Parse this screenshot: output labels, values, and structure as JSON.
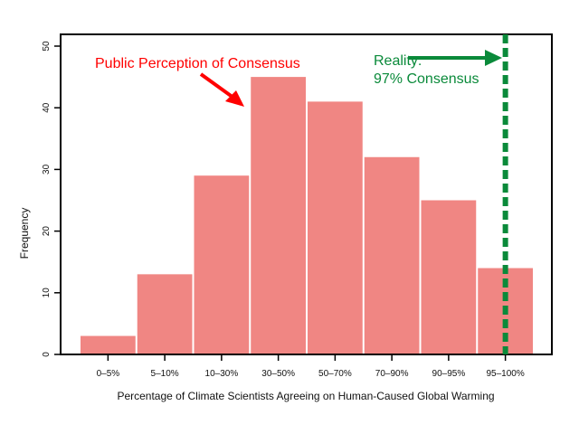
{
  "chart_data": {
    "type": "bar",
    "title": "",
    "xlabel": "Percentage of Climate Scientists Agreeing on Human-Caused Global Warming",
    "ylabel": "Frequency",
    "categories": [
      "0–5%",
      "5–10%",
      "10–30%",
      "30–50%",
      "50–70%",
      "70–90%",
      "90–95%",
      "95–100%"
    ],
    "values": [
      3,
      13,
      29,
      45,
      41,
      32,
      25,
      14
    ],
    "ylim": [
      0,
      50
    ],
    "yticks": [
      "0",
      "10",
      "20",
      "30",
      "40",
      "50"
    ],
    "grid": false,
    "bar_color": "#f08683",
    "annotations": {
      "public_label": "Public Perception of Consensus",
      "public_color": "#ff0000",
      "reality_line1": "Reality:",
      "reality_line2": "97% Consensus",
      "reality_color": "#0a8a3a",
      "reality_category": "95–100%"
    }
  }
}
